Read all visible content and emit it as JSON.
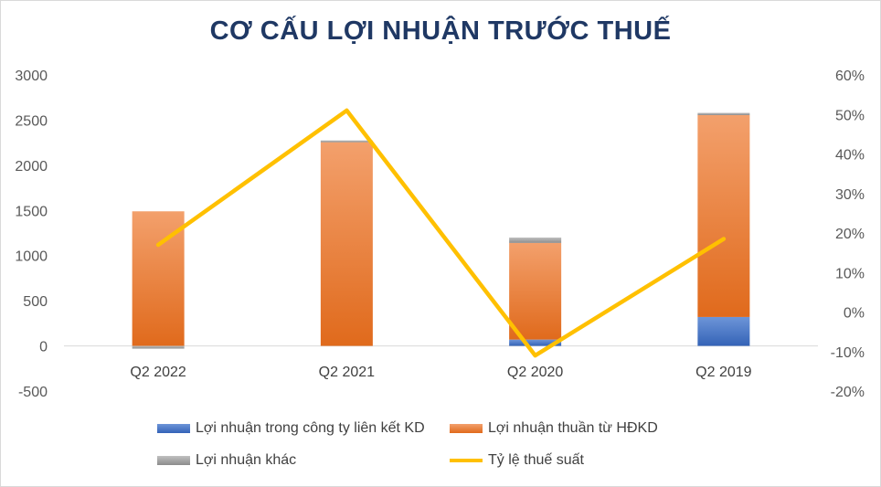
{
  "chart_data": {
    "type": "bar",
    "title": "CƠ CẤU LỢI NHUẬN TRƯỚC THUẾ",
    "categories": [
      "Q2 2022",
      "Q2 2021",
      "Q2 2020",
      "Q2 2019"
    ],
    "stacked": true,
    "series": [
      {
        "name": "Lợi nhuận trong công ty liên kết KD",
        "type": "bar",
        "axis": "left",
        "color": "#4472c4",
        "values": [
          0,
          0,
          70,
          320
        ]
      },
      {
        "name": "Lợi nhuận thuần từ HĐKD",
        "type": "bar",
        "axis": "left",
        "color": "#ed7d31",
        "values": [
          1490,
          2255,
          1070,
          2235
        ]
      },
      {
        "name": "Lợi nhuận khác",
        "type": "bar",
        "axis": "left",
        "color": "#a5a5a5",
        "values": [
          -30,
          20,
          60,
          25
        ]
      },
      {
        "name": "Tỷ lệ thuế suất",
        "type": "line",
        "axis": "right",
        "color": "#ffc000",
        "values": [
          0.17,
          0.51,
          -0.11,
          0.185
        ]
      }
    ],
    "y_left": {
      "min": -500,
      "max": 3000,
      "step": 500,
      "ticks": [
        "-500",
        "0",
        "500",
        "1000",
        "1500",
        "2000",
        "2500",
        "3000"
      ]
    },
    "y_right": {
      "min": -0.2,
      "max": 0.6,
      "step": 0.1,
      "ticks": [
        "-20%",
        "-10%",
        "0%",
        "10%",
        "20%",
        "30%",
        "40%",
        "50%",
        "60%"
      ]
    },
    "legend_position": "bottom",
    "grid": false
  }
}
